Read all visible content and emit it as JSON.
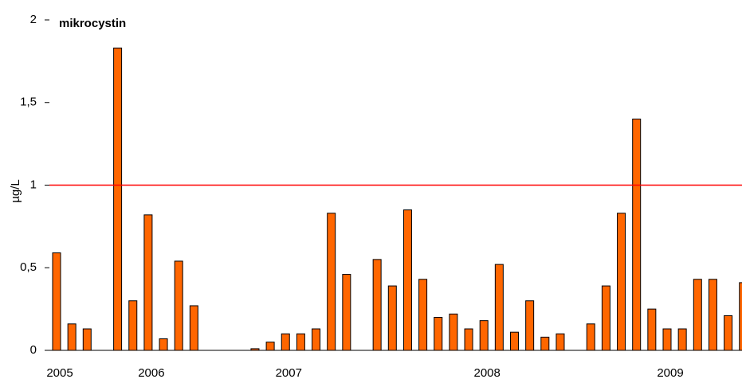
{
  "chart_data": {
    "type": "bar",
    "title": "mikrocystin",
    "y_label": "µg/L",
    "categories": [
      "2005",
      null,
      null,
      null,
      null,
      null,
      "2006",
      null,
      null,
      null,
      null,
      null,
      null,
      null,
      null,
      "2007",
      null,
      null,
      null,
      null,
      null,
      null,
      null,
      null,
      null,
      null,
      null,
      null,
      "2008",
      null,
      null,
      null,
      null,
      null,
      null,
      null,
      null,
      null,
      null,
      null,
      "2009",
      null,
      null,
      null,
      null,
      null
    ],
    "values": [
      0.59,
      0.16,
      0.13,
      null,
      1.83,
      0.3,
      0.82,
      0.07,
      0.54,
      0.27,
      null,
      null,
      null,
      0.01,
      0.05,
      0.1,
      0.1,
      0.13,
      0.83,
      0.46,
      null,
      0.55,
      0.39,
      0.85,
      0.43,
      0.2,
      0.22,
      0.13,
      0.18,
      0.52,
      0.11,
      0.3,
      0.08,
      0.1,
      null,
      0.16,
      0.39,
      0.83,
      1.4,
      0.25,
      0.13,
      0.13,
      0.43,
      0.43,
      0.21,
      0.41
    ],
    "color": "#ff6600",
    "ylim": [
      0,
      2
    ],
    "yticks": [
      0,
      {
        "value": 0.5,
        "label": "0,5"
      },
      1,
      {
        "value": 1.5,
        "label": "1,5"
      },
      2
    ],
    "threshold": 1,
    "threshold_color": "#ff0000"
  }
}
